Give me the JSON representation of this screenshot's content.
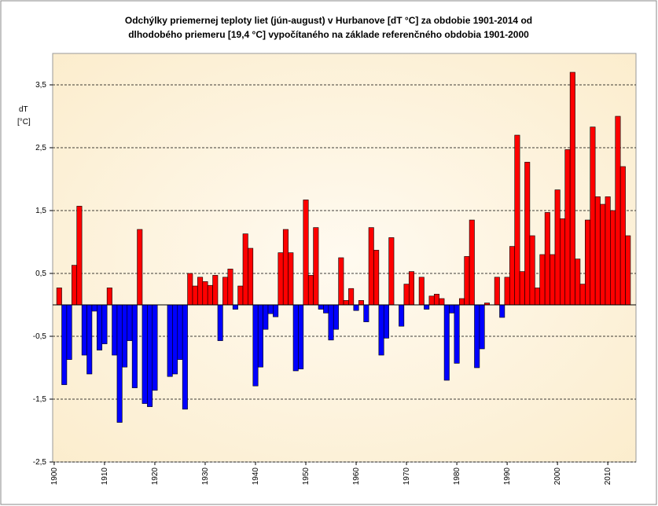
{
  "chart_data": {
    "type": "bar",
    "title": [
      "Odchýlky priemernej teploty liet (jún-august)  v Hurbanove [dT °C] za obdobie 1901-2014 od",
      "dlhodobého priemeru [19,4 °C] vypočítaného na základe referenčného obdobia 1901-2000"
    ],
    "y_label": [
      "dT",
      "[°C]"
    ],
    "x": [
      1901,
      1902,
      1903,
      1904,
      1905,
      1906,
      1907,
      1908,
      1909,
      1910,
      1911,
      1912,
      1913,
      1914,
      1915,
      1916,
      1917,
      1918,
      1919,
      1920,
      1921,
      1922,
      1923,
      1924,
      1925,
      1926,
      1927,
      1928,
      1929,
      1930,
      1931,
      1932,
      1933,
      1934,
      1935,
      1936,
      1937,
      1938,
      1939,
      1940,
      1941,
      1942,
      1943,
      1944,
      1945,
      1946,
      1947,
      1948,
      1949,
      1950,
      1951,
      1952,
      1953,
      1954,
      1955,
      1956,
      1957,
      1958,
      1959,
      1960,
      1961,
      1962,
      1963,
      1964,
      1965,
      1966,
      1967,
      1968,
      1969,
      1970,
      1971,
      1972,
      1973,
      1974,
      1975,
      1976,
      1977,
      1978,
      1979,
      1980,
      1981,
      1982,
      1983,
      1984,
      1985,
      1986,
      1987,
      1988,
      1989,
      1990,
      1991,
      1992,
      1993,
      1994,
      1995,
      1996,
      1997,
      1998,
      1999,
      2000,
      2001,
      2002,
      2003,
      2004,
      2005,
      2006,
      2007,
      2008,
      2009,
      2010,
      2011,
      2012,
      2013,
      2014
    ],
    "values": [
      0.27,
      -1.27,
      -0.87,
      0.63,
      1.57,
      -0.8,
      -1.1,
      -0.1,
      -0.72,
      -0.62,
      0.27,
      -0.8,
      -1.87,
      -0.99,
      -0.57,
      -1.32,
      1.2,
      -1.57,
      -1.62,
      -1.36,
      0,
      0,
      -1.14,
      -1.1,
      -0.87,
      -1.66,
      0.5,
      0.3,
      0.44,
      0.37,
      0.31,
      0.47,
      -0.57,
      0.44,
      0.57,
      -0.07,
      0.3,
      1.13,
      0.9,
      -1.29,
      -0.99,
      -0.39,
      -0.14,
      -0.19,
      0.83,
      1.2,
      0.83,
      -1.05,
      -1.02,
      1.67,
      0.47,
      1.23,
      -0.07,
      -0.13,
      -0.56,
      -0.39,
      0.75,
      0.07,
      0.26,
      -0.09,
      0.07,
      -0.27,
      1.23,
      0.87,
      -0.8,
      -0.53,
      1.07,
      0,
      -0.34,
      0.33,
      0.53,
      0,
      0.44,
      -0.07,
      0.14,
      0.17,
      0.1,
      -1.2,
      -0.13,
      -0.93,
      0.1,
      0.77,
      1.35,
      -1.0,
      -0.7,
      0.03,
      0,
      0.44,
      -0.2,
      0.44,
      0.93,
      2.7,
      0.53,
      2.27,
      1.1,
      0.27,
      0.8,
      1.47,
      0.8,
      1.83,
      1.37,
      2.47,
      3.7,
      0.73,
      0.33,
      1.35,
      2.83,
      1.72,
      1.6,
      1.72,
      1.5,
      3.0,
      2.2,
      1.1
    ],
    "positive_color": "#ff0000",
    "negative_color": "#0000ff",
    "xlim": [
      1899.7,
      2015.6
    ],
    "xticks": [
      1900,
      1910,
      1920,
      1930,
      1940,
      1950,
      1960,
      1970,
      1980,
      1990,
      2000,
      2010
    ],
    "ylim": [
      -2.5,
      4
    ],
    "yticks": [
      {
        "value": -2.5,
        "label": "-2,5"
      },
      {
        "value": -1.5,
        "label": "-1,5"
      },
      {
        "value": -0.5,
        "label": "-0,5"
      },
      {
        "value": 0.5,
        "label": "0,5"
      },
      {
        "value": 1.5,
        "label": "1,5"
      },
      {
        "value": 2.5,
        "label": "2,5"
      },
      {
        "value": 3.5,
        "label": "3,5"
      }
    ],
    "grid": true
  }
}
